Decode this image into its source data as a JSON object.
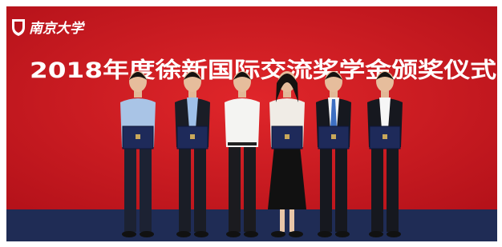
{
  "logo": {
    "text": "南京大学"
  },
  "banner": {
    "title": "2018年度徐新国际交流奖学金颁奖仪式"
  }
}
